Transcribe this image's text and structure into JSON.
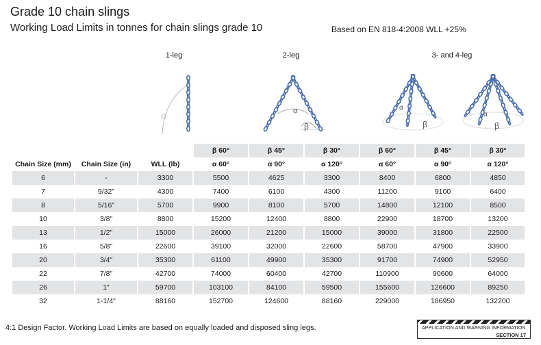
{
  "header": {
    "title": "Grade 10 chain slings",
    "subtitle": "Working Load Limits in tonnes for chain slings grade 10",
    "standard": "Based on EN 818-4:2008 WLL +25%"
  },
  "groups": {
    "one_leg": "1-leg",
    "two_leg": "2-leg",
    "multi_leg": "3- and 4-leg"
  },
  "diagram_labels": {
    "alpha": "α",
    "beta": "β"
  },
  "table": {
    "angle_row_beta": [
      "β 60°",
      "β 45°",
      "β 30°",
      "β 60°",
      "β 45°",
      "β 30°"
    ],
    "headers": [
      "Chain Size (mm)",
      "Chain Size (in)",
      "WLL (lb)",
      "α 60°",
      "α 90°",
      "α 120°",
      "α 60°",
      "α 90°",
      "α 120°"
    ],
    "rows": [
      [
        "6",
        "-",
        "3300",
        "5500",
        "4625",
        "3300",
        "8400",
        "6800",
        "4850"
      ],
      [
        "7",
        "9/32\"",
        "4300",
        "7400",
        "6100",
        "4300",
        "11200",
        "9100",
        "6400"
      ],
      [
        "8",
        "5/16\"",
        "5700",
        "9900",
        "8100",
        "5700",
        "14800",
        "12100",
        "8500"
      ],
      [
        "10",
        "3/8\"",
        "8800",
        "15200",
        "12400",
        "8800",
        "22900",
        "18700",
        "13200"
      ],
      [
        "13",
        "1/2\"",
        "15000",
        "26000",
        "21200",
        "15000",
        "39000",
        "31800",
        "22500"
      ],
      [
        "16",
        "5/8\"",
        "22600",
        "39100",
        "32000",
        "22600",
        "58700",
        "47900",
        "33900"
      ],
      [
        "20",
        "3/4\"",
        "35300",
        "61100",
        "49900",
        "35300",
        "91700",
        "74900",
        "52950"
      ],
      [
        "22",
        "7/8\"",
        "42700",
        "74000",
        "60400",
        "42700",
        "110900",
        "90600",
        "64000"
      ],
      [
        "26",
        "1\"",
        "59700",
        "103100",
        "84100",
        "59500",
        "155600",
        "126600",
        "89250"
      ],
      [
        "32",
        "1-1/4\"",
        "88160",
        "152700",
        "124600",
        "88160",
        "229000",
        "186950",
        "132200"
      ]
    ]
  },
  "footer": {
    "note": "4:1 Design Factor. Working Load Limits are based on equally loaded and disposed sling legs.",
    "badge_line1": "APPLICATION AND WARNING INFORMATION",
    "badge_line2": "SECTION 17"
  },
  "colors": {
    "chain": "#4a6fb0",
    "row_shade": "#e3e4e6"
  }
}
